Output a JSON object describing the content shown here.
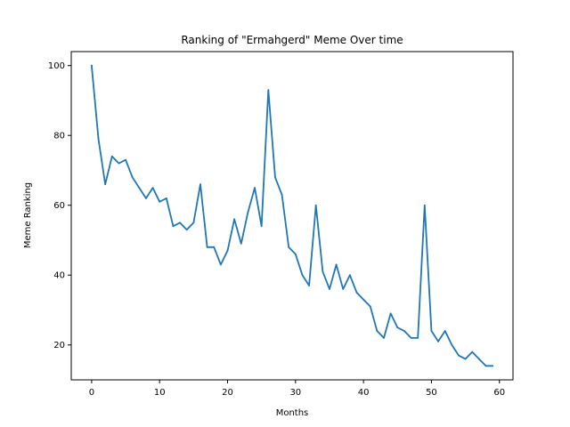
{
  "chart_data": {
    "type": "line",
    "title": "Ranking of \"Ermahgerd\" Meme Over time",
    "xlabel": "Months",
    "ylabel": "Meme Ranking",
    "xlim": [
      -3,
      62
    ],
    "ylim": [
      10,
      104
    ],
    "xticks": [
      0,
      10,
      20,
      30,
      40,
      50,
      60
    ],
    "yticks": [
      20,
      40,
      60,
      80,
      100
    ],
    "grid": false,
    "series": [
      {
        "color": "#1f77b4",
        "x": [
          0,
          1,
          2,
          3,
          4,
          5,
          6,
          7,
          8,
          9,
          10,
          11,
          12,
          13,
          14,
          15,
          16,
          17,
          18,
          19,
          20,
          21,
          22,
          23,
          24,
          25,
          26,
          27,
          28,
          29,
          30,
          31,
          32,
          33,
          34,
          35,
          36,
          37,
          38,
          39,
          40,
          41,
          42,
          43,
          44,
          45,
          46,
          47,
          48,
          49,
          50,
          51,
          52,
          53,
          54,
          55,
          56,
          57,
          58,
          59
        ],
        "y": [
          100,
          79,
          66,
          74,
          72,
          73,
          68,
          65,
          62,
          65,
          61,
          62,
          54,
          55,
          53,
          55,
          66,
          48,
          48,
          43,
          47,
          56,
          49,
          58,
          65,
          54,
          93,
          68,
          63,
          48,
          46,
          40,
          37,
          60,
          41,
          36,
          43,
          36,
          40,
          35,
          33,
          31,
          24,
          22,
          29,
          25,
          24,
          22,
          22,
          60,
          24,
          21,
          24,
          20,
          17,
          16,
          18,
          16,
          14,
          14
        ]
      }
    ]
  }
}
